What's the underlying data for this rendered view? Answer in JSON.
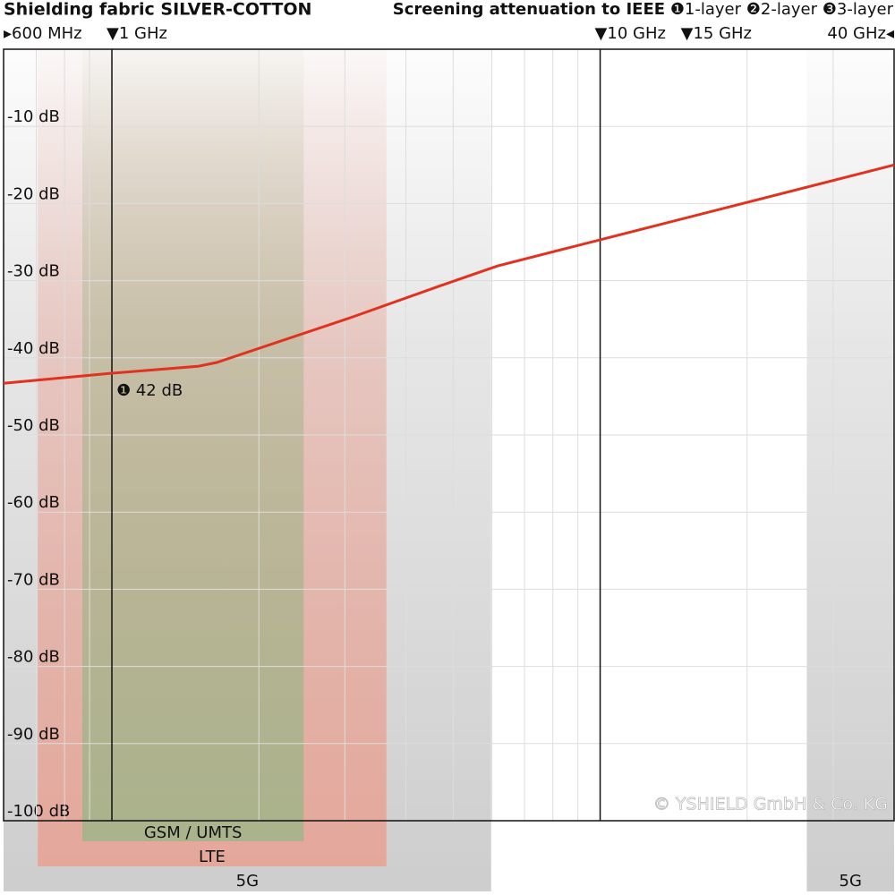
{
  "chart_data": {
    "type": "line",
    "title": "Shielding fabric SILVER-COTTON",
    "subtitle": "Screening attenuation to IEEE",
    "layers": [
      "❶1-layer",
      "❷2-layer",
      "❸3-layer"
    ],
    "x": [
      0.6,
      1,
      1.5,
      1.64,
      3.08,
      4.69,
      6.16,
      10,
      40
    ],
    "values": [
      -43.3,
      -42,
      -41.1,
      -40.6,
      -34.8,
      -30.7,
      -28.1,
      -24.7,
      -15
    ],
    "color": "#e0321e",
    "annotation": "❶ 42 dB",
    "log_x": true,
    "xlim": [
      0.6,
      40
    ],
    "xticks": [
      {
        "value": 0.6,
        "label": "▸600 MHz"
      },
      {
        "value": 1,
        "label": "▼1 GHz"
      },
      {
        "value": 10,
        "label": "▼10 GHz"
      },
      {
        "value": 15,
        "label": "▼15 GHz"
      },
      {
        "value": 40,
        "label": "40 GHz◂"
      }
    ],
    "xmajor": [
      1,
      10
    ],
    "xgrid": [
      0.7,
      0.8,
      0.9,
      2,
      3,
      4,
      5,
      6,
      7,
      8,
      9,
      20,
      30
    ],
    "ylim": [
      -100,
      0
    ],
    "yticks": [
      {
        "value": -10,
        "label": "-10 dB"
      },
      {
        "value": -20,
        "label": "-20 dB"
      },
      {
        "value": -30,
        "label": "-30 dB"
      },
      {
        "value": -40,
        "label": "-40 dB"
      },
      {
        "value": -50,
        "label": "-50 dB"
      },
      {
        "value": -60,
        "label": "-60 dB"
      },
      {
        "value": -70,
        "label": "-70 dB"
      },
      {
        "value": -80,
        "label": "-80 dB"
      },
      {
        "value": -90,
        "label": "-90 dB"
      },
      {
        "value": -100,
        "label": "-100 dB"
      }
    ],
    "grid": true,
    "bands": [
      {
        "label": "5G",
        "range": [
          0.6,
          5.98
        ],
        "color": "#c8c8c8",
        "row": 3
      },
      {
        "label": "5G",
        "range": [
          26.5,
          40
        ],
        "color": "#c8c8c8",
        "row": 3
      },
      {
        "label": "LTE",
        "range": [
          0.705,
          3.65
        ],
        "color": "#e7a395",
        "row": 2
      },
      {
        "label": "GSM / UMTS",
        "range": [
          0.87,
          2.47
        ],
        "color": "#a3b48a",
        "row": 1
      }
    ],
    "copyright": "© YSHIELD GmbH & Co. KG"
  }
}
